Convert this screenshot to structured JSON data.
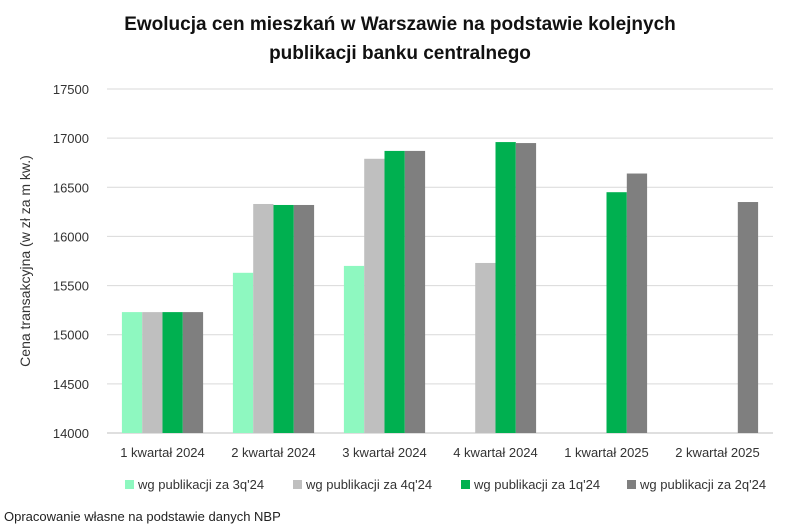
{
  "chart_data": {
    "type": "bar",
    "title": [
      "Ewolucja cen mieszkań w Warszawie na podstawie kolejnych",
      "publikacji banku centralnego"
    ],
    "xlabel": "",
    "ylabel": "Cena transakcyjna (w zł za m kw.)",
    "ylim": [
      14000,
      17500
    ],
    "yticks": [
      14000,
      14500,
      15000,
      15500,
      16000,
      16500,
      17000,
      17500
    ],
    "grid": true,
    "legend_position": "bottom",
    "categories": [
      "1 kwartał 2024",
      "2 kwartał 2024",
      "3 kwartał 2024",
      "4 kwartał 2024",
      "1 kwartał 2025",
      "2 kwartał 2025"
    ],
    "series": [
      {
        "name": "wg publikacji za 3q'24",
        "color": "#8ef8c0",
        "values": [
          15230,
          15630,
          15700,
          null,
          null,
          null
        ]
      },
      {
        "name": "wg publikacji za 4q'24",
        "color": "#bfbfbf",
        "values": [
          15230,
          16330,
          16790,
          15730,
          null,
          null
        ]
      },
      {
        "name": "wg publikacji za 1q'24",
        "color": "#00b050",
        "values": [
          15230,
          16320,
          16870,
          16960,
          16450,
          null
        ]
      },
      {
        "name": "wg publikacji za 2q'24",
        "color": "#7f7f7f",
        "values": [
          15230,
          16320,
          16870,
          16950,
          16640,
          16350
        ]
      }
    ]
  },
  "source": "Opracowanie własne na podstawie danych NBP"
}
